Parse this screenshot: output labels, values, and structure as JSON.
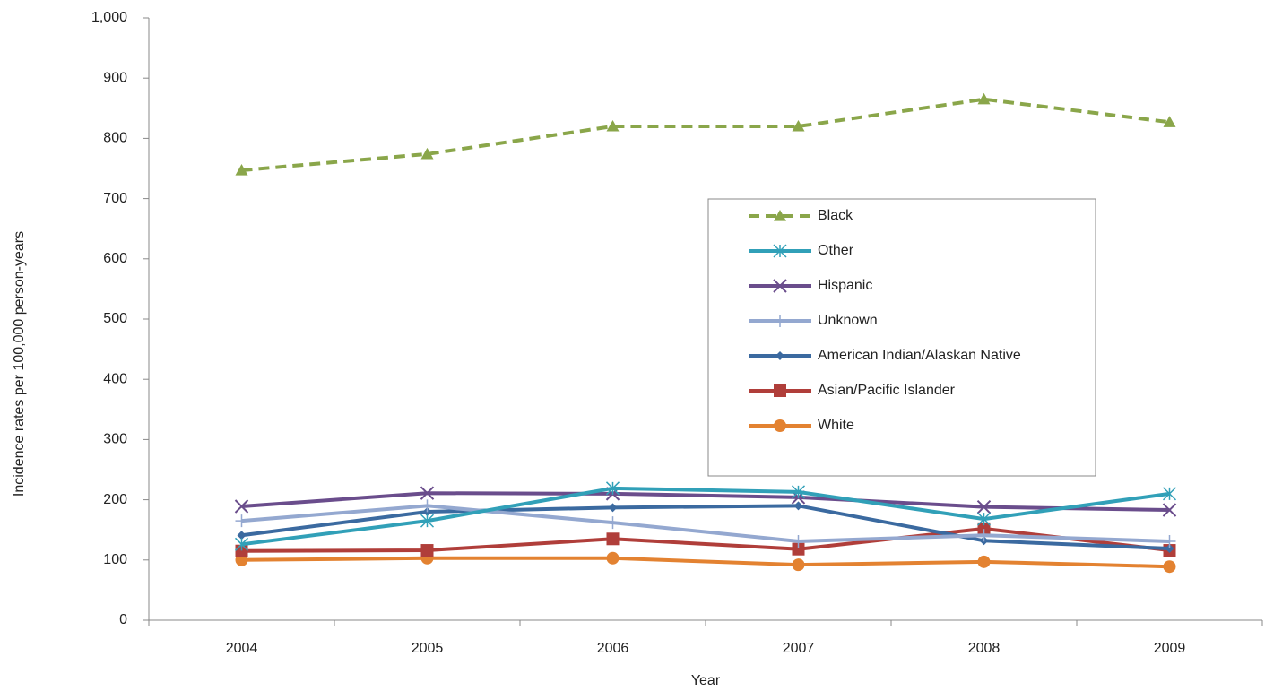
{
  "chart_data": {
    "type": "line",
    "y_label": "Incidence rates per 100,000 person-years",
    "x_label": "Year",
    "categories": [
      "2004",
      "2005",
      "2006",
      "2007",
      "2008",
      "2009"
    ],
    "series": [
      {
        "name": "Black",
        "color": "#8aa64a",
        "marker": "triangle",
        "dash": true,
        "values": [
          747,
          774,
          820,
          820,
          865,
          827
        ]
      },
      {
        "name": "Other",
        "color": "#31a0b8",
        "marker": "asterisk",
        "values": [
          126,
          165,
          219,
          213,
          168,
          210
        ]
      },
      {
        "name": "Hispanic",
        "color": "#6a4d8c",
        "marker": "cross",
        "values": [
          189,
          211,
          210,
          204,
          188,
          183
        ]
      },
      {
        "name": "Unknown",
        "color": "#94a8d0",
        "marker": "plus",
        "values": [
          165,
          190,
          162,
          131,
          141,
          131
        ]
      },
      {
        "name": "American Indian/Alaskan Native",
        "color": "#3b6aa0",
        "marker": "diamond",
        "values": [
          141,
          180,
          187,
          190,
          132,
          119
        ]
      },
      {
        "name": "Asian/Pacific Islander",
        "color": "#b03e3a",
        "marker": "square",
        "values": [
          115,
          116,
          135,
          118,
          152,
          116
        ]
      },
      {
        "name": "White",
        "color": "#e38231",
        "marker": "circle",
        "values": [
          100,
          103,
          103,
          92,
          97,
          89
        ]
      }
    ],
    "ylim": [
      0,
      1000
    ],
    "yticks": [
      0,
      100,
      200,
      300,
      400,
      500,
      600,
      700,
      800,
      900,
      {
        "value": 1000,
        "label": "1,000"
      }
    ],
    "legend": "center-right"
  }
}
